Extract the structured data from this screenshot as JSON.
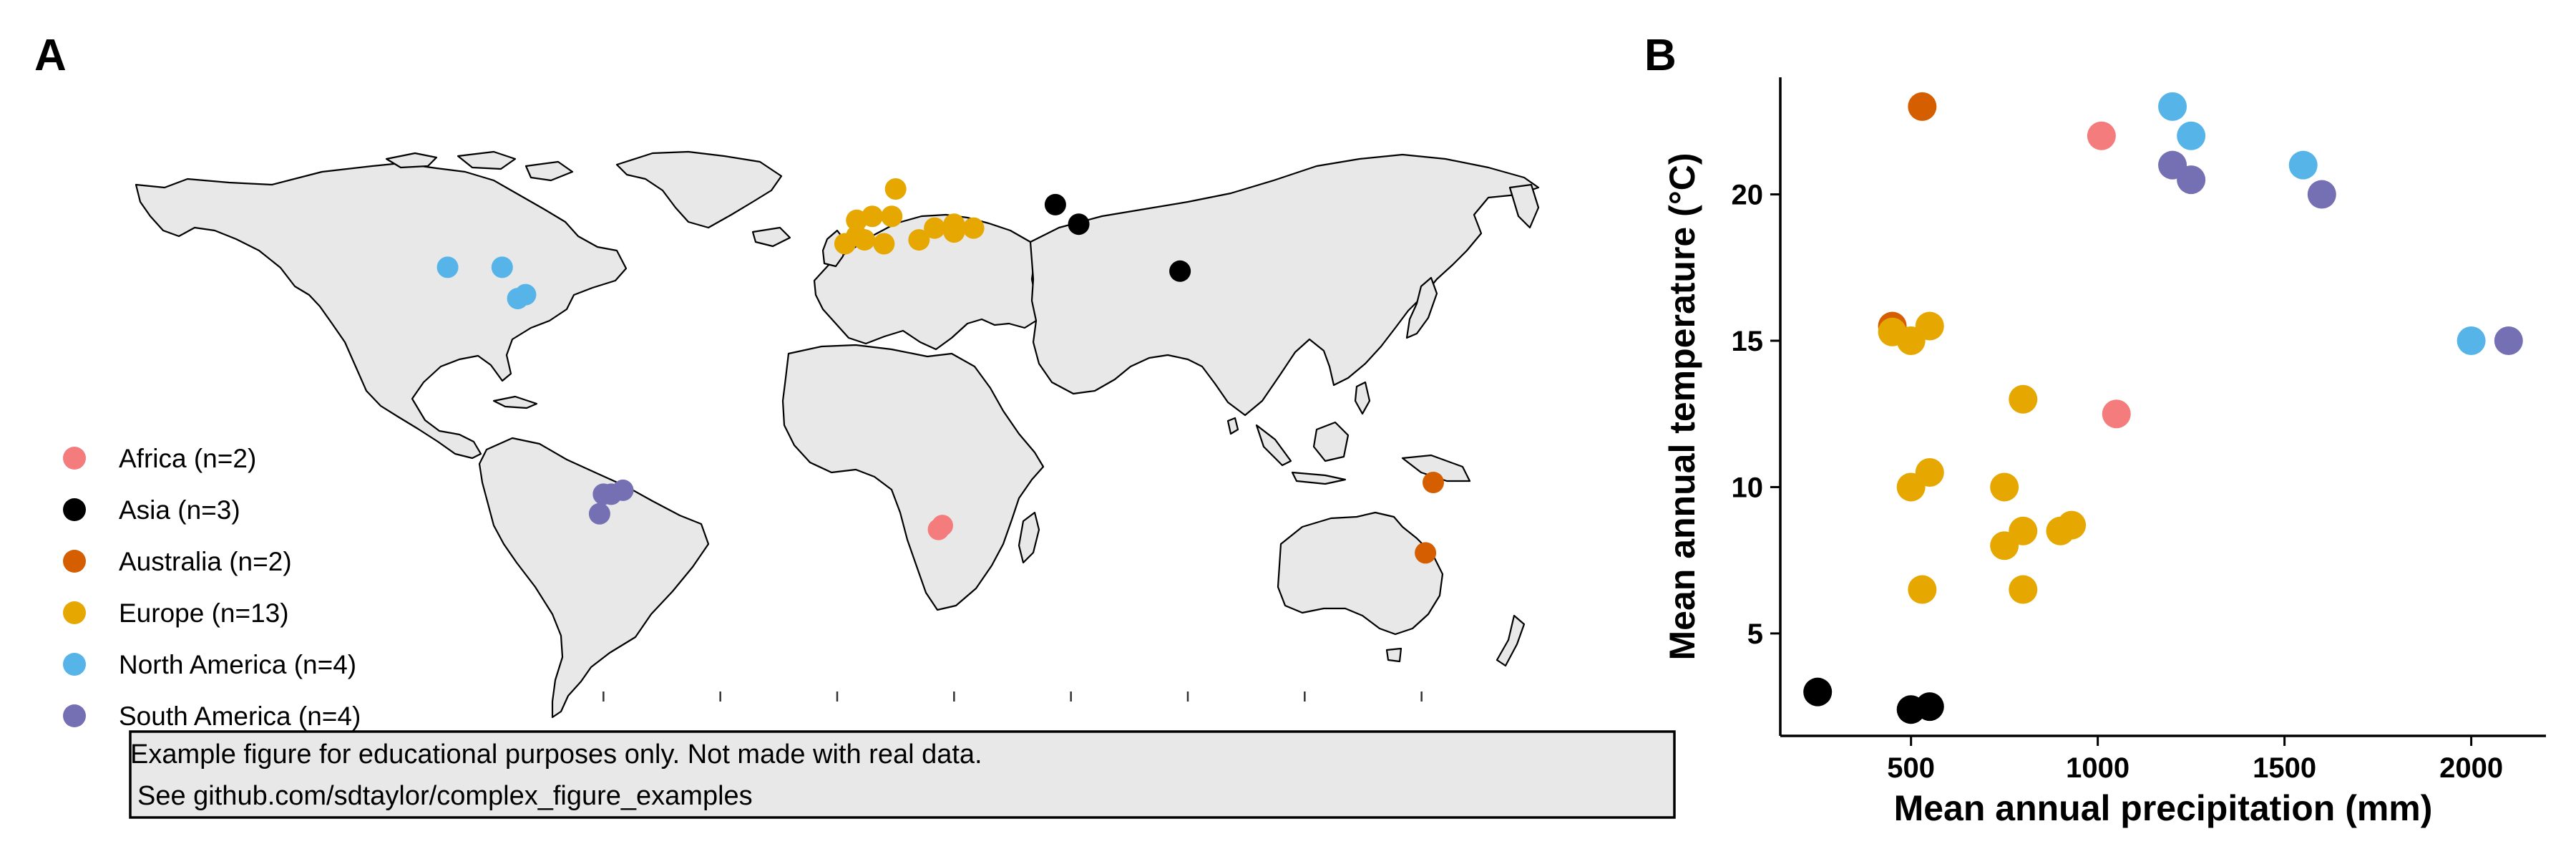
{
  "panels": {
    "a": "A",
    "b": "B"
  },
  "colors": {
    "Africa": "#F47C7C",
    "Asia": "#000000",
    "Australia": "#D55E00",
    "Europe": "#E6A800",
    "North America": "#56B4E9",
    "South America": "#7570B3"
  },
  "legend": [
    {
      "region": "Africa",
      "label": "Africa (n=2)"
    },
    {
      "region": "Asia",
      "label": "Asia (n=3)"
    },
    {
      "region": "Australia",
      "label": "Australia (n=2)"
    },
    {
      "region": "Europe",
      "label": "Europe (n=13)"
    },
    {
      "region": "North America",
      "label": "North America (n=4)"
    },
    {
      "region": "South America",
      "label": "South America (n=4)"
    }
  ],
  "note": {
    "line1": "Example figure for educational purposes only. Not made with real data.",
    "line2": "See github.com/sdtaylor/complex_figure_examples"
  },
  "chart_data": [
    {
      "type": "map",
      "legend_position": "bottom-left",
      "sites": [
        {
          "region": "North America",
          "lon": -100,
          "lat": 40
        },
        {
          "region": "North America",
          "lon": -86,
          "lat": 40
        },
        {
          "region": "North America",
          "lon": -82,
          "lat": 32
        },
        {
          "region": "North America",
          "lon": -80,
          "lat": 33
        },
        {
          "region": "South America",
          "lon": -58,
          "lat": -18
        },
        {
          "region": "South America",
          "lon": -55,
          "lat": -17
        },
        {
          "region": "South America",
          "lon": -61,
          "lat": -23
        },
        {
          "region": "South America",
          "lon": -60,
          "lat": -18
        },
        {
          "region": "Europe",
          "lon": 5,
          "lat": 52
        },
        {
          "region": "Europe",
          "lon": 9,
          "lat": 53
        },
        {
          "region": "Europe",
          "lon": 14,
          "lat": 53
        },
        {
          "region": "Europe",
          "lon": 15,
          "lat": 60
        },
        {
          "region": "Europe",
          "lon": 2,
          "lat": 46
        },
        {
          "region": "Europe",
          "lon": 7,
          "lat": 47
        },
        {
          "region": "Europe",
          "lon": 12,
          "lat": 46
        },
        {
          "region": "Europe",
          "lon": 21,
          "lat": 47
        },
        {
          "region": "Europe",
          "lon": 25,
          "lat": 50
        },
        {
          "region": "Europe",
          "lon": 30,
          "lat": 51
        },
        {
          "region": "Europe",
          "lon": 30,
          "lat": 49
        },
        {
          "region": "Europe",
          "lon": 35,
          "lat": 50
        },
        {
          "region": "Europe",
          "lon": 5,
          "lat": 48
        },
        {
          "region": "Asia",
          "lon": 56,
          "lat": 56
        },
        {
          "region": "Asia",
          "lon": 62,
          "lat": 51
        },
        {
          "region": "Asia",
          "lon": 88,
          "lat": 39
        },
        {
          "region": "Africa",
          "lon": 27,
          "lat": -26
        },
        {
          "region": "Africa",
          "lon": 26,
          "lat": -27
        },
        {
          "region": "Australia",
          "lon": 153,
          "lat": -15
        },
        {
          "region": "Australia",
          "lon": 151,
          "lat": -33
        }
      ]
    },
    {
      "type": "scatter",
      "xlabel": "Mean annual precipitation (mm)",
      "ylabel": "Mean annual temperature (°C)",
      "xlim": [
        150,
        2200
      ],
      "ylim": [
        1.5,
        24
      ],
      "xticks": [
        500,
        1000,
        1500,
        2000
      ],
      "yticks": [
        5,
        10,
        15,
        20
      ],
      "grid": false,
      "points": [
        {
          "region": "Africa",
          "x": 1010,
          "y": 22
        },
        {
          "region": "Africa",
          "x": 1050,
          "y": 12.5
        },
        {
          "region": "Asia",
          "x": 250,
          "y": 3
        },
        {
          "region": "Asia",
          "x": 500,
          "y": 2.4
        },
        {
          "region": "Asia",
          "x": 550,
          "y": 2.5
        },
        {
          "region": "Australia",
          "x": 530,
          "y": 23
        },
        {
          "region": "Australia",
          "x": 450,
          "y": 15.5
        },
        {
          "region": "Europe",
          "x": 450,
          "y": 15.3
        },
        {
          "region": "Europe",
          "x": 500,
          "y": 15
        },
        {
          "region": "Europe",
          "x": 550,
          "y": 15.5
        },
        {
          "region": "Europe",
          "x": 800,
          "y": 13
        },
        {
          "region": "Europe",
          "x": 500,
          "y": 10
        },
        {
          "region": "Europe",
          "x": 550,
          "y": 10.5
        },
        {
          "region": "Europe",
          "x": 750,
          "y": 10
        },
        {
          "region": "Europe",
          "x": 750,
          "y": 8
        },
        {
          "region": "Europe",
          "x": 800,
          "y": 8.5
        },
        {
          "region": "Europe",
          "x": 900,
          "y": 8.5
        },
        {
          "region": "Europe",
          "x": 930,
          "y": 8.7
        },
        {
          "region": "Europe",
          "x": 530,
          "y": 6.5
        },
        {
          "region": "Europe",
          "x": 800,
          "y": 6.5
        },
        {
          "region": "North America",
          "x": 1200,
          "y": 23
        },
        {
          "region": "North America",
          "x": 1250,
          "y": 22
        },
        {
          "region": "North America",
          "x": 1550,
          "y": 21
        },
        {
          "region": "North America",
          "x": 2000,
          "y": 15
        },
        {
          "region": "South America",
          "x": 1200,
          "y": 21
        },
        {
          "region": "South America",
          "x": 1250,
          "y": 20.5
        },
        {
          "region": "South America",
          "x": 1600,
          "y": 20
        },
        {
          "region": "South America",
          "x": 2100,
          "y": 15
        }
      ]
    }
  ]
}
